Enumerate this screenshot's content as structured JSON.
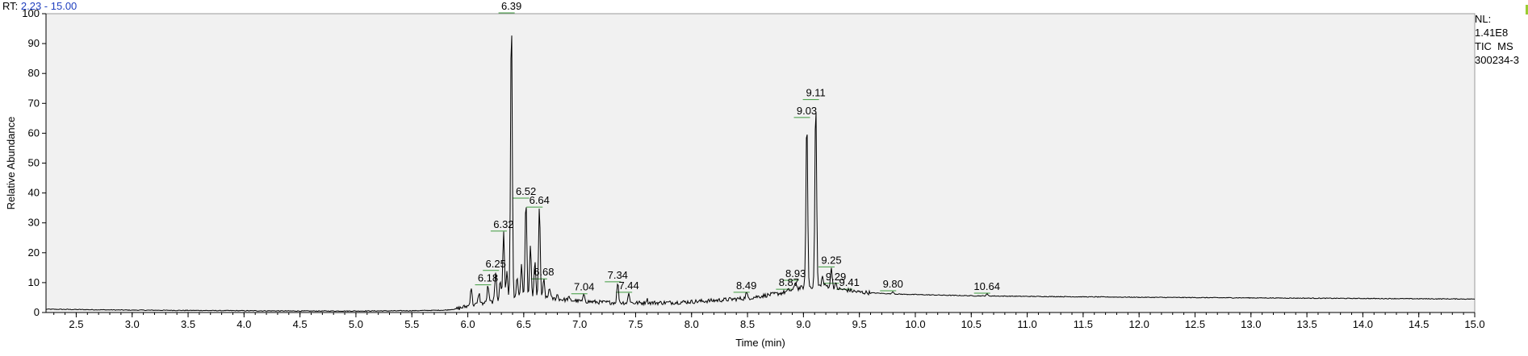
{
  "header": {
    "rt_prefix": "RT:",
    "rt_range": "2.23 - 15.00"
  },
  "side_info": {
    "nl_label": "NL:",
    "nl_value": "1.41E8",
    "scan_filter": "TIC  MS",
    "sample_id": "300234-3"
  },
  "colors": {
    "plot_background": "#f1f1f1",
    "trace": "#000000",
    "peak_marker": "#3c9a3c",
    "rt_range_text": "#1f3fbf"
  },
  "chart_data": {
    "type": "line",
    "title": "",
    "xlabel": "Time (min)",
    "ylabel": "Relative Abundance",
    "xlim": [
      2.23,
      15.0
    ],
    "ylim": [
      0,
      100
    ],
    "x_ticks": [
      2.5,
      3.0,
      3.5,
      4.0,
      4.5,
      5.0,
      5.5,
      6.0,
      6.5,
      7.0,
      7.5,
      8.0,
      8.5,
      9.0,
      9.5,
      10.0,
      10.5,
      11.0,
      11.5,
      12.0,
      12.5,
      13.0,
      13.5,
      14.0,
      14.5,
      15.0
    ],
    "x_tick_labels": [
      "2.5",
      "3.0",
      "3.5",
      "4.0",
      "4.5",
      "5.0",
      "5.5",
      "6.0",
      "6.5",
      "7.0",
      "7.5",
      "8.0",
      "8.5",
      "9.0",
      "9.5",
      "10.0",
      "10.5",
      "11.0",
      "11.5",
      "12.0",
      "12.5",
      "13.0",
      "13.5",
      "14.0",
      "14.5",
      "15.0"
    ],
    "y_ticks": [
      0,
      10,
      20,
      30,
      40,
      50,
      60,
      70,
      80,
      90,
      100
    ],
    "y_tick_labels": [
      "0",
      "10",
      "20",
      "30",
      "40",
      "50",
      "60",
      "70",
      "80",
      "90",
      "100"
    ],
    "baseline": [
      [
        2.23,
        1.1
      ],
      [
        2.5,
        1.0
      ],
      [
        3.0,
        0.8
      ],
      [
        3.5,
        0.7
      ],
      [
        4.0,
        0.6
      ],
      [
        4.5,
        0.5
      ],
      [
        5.0,
        0.5
      ],
      [
        5.5,
        0.6
      ],
      [
        5.8,
        0.8
      ],
      [
        5.9,
        1.2
      ],
      [
        6.0,
        2.2
      ],
      [
        6.2,
        3.5
      ],
      [
        6.4,
        4.5
      ],
      [
        6.6,
        5.0
      ],
      [
        6.8,
        4.5
      ],
      [
        7.0,
        3.8
      ],
      [
        7.2,
        3.4
      ],
      [
        7.5,
        3.2
      ],
      [
        7.8,
        3.3
      ],
      [
        8.0,
        3.6
      ],
      [
        8.2,
        4.0
      ],
      [
        8.5,
        4.8
      ],
      [
        8.8,
        6.5
      ],
      [
        9.0,
        8.5
      ],
      [
        9.2,
        9.0
      ],
      [
        9.3,
        8.0
      ],
      [
        9.5,
        6.8
      ],
      [
        9.8,
        6.2
      ],
      [
        10.0,
        6.0
      ],
      [
        10.5,
        5.6
      ],
      [
        11.0,
        5.4
      ],
      [
        12.0,
        5.1
      ],
      [
        13.0,
        4.9
      ],
      [
        14.0,
        4.7
      ],
      [
        15.0,
        4.5
      ]
    ],
    "peaks": [
      {
        "rt": 6.03,
        "height": 8.5,
        "label": ""
      },
      {
        "rt": 6.1,
        "height": 6.5,
        "label": ""
      },
      {
        "rt": 6.18,
        "height": 9.0,
        "label": "6.18"
      },
      {
        "rt": 6.25,
        "height": 13.8,
        "label": "6.25"
      },
      {
        "rt": 6.29,
        "height": 10.5,
        "label": ""
      },
      {
        "rt": 6.32,
        "height": 27.0,
        "label": "6.32"
      },
      {
        "rt": 6.35,
        "height": 14.0,
        "label": ""
      },
      {
        "rt": 6.39,
        "height": 100.0,
        "label": "6.39"
      },
      {
        "rt": 6.44,
        "height": 12.0,
        "label": ""
      },
      {
        "rt": 6.48,
        "height": 16.0,
        "label": ""
      },
      {
        "rt": 6.52,
        "height": 38.0,
        "label": "6.52"
      },
      {
        "rt": 6.56,
        "height": 22.0,
        "label": ""
      },
      {
        "rt": 6.6,
        "height": 17.0,
        "label": ""
      },
      {
        "rt": 6.64,
        "height": 35.0,
        "label": "6.64"
      },
      {
        "rt": 6.68,
        "height": 11.0,
        "label": "6.68"
      },
      {
        "rt": 6.73,
        "height": 8.5,
        "label": ""
      },
      {
        "rt": 6.8,
        "height": 6.0,
        "label": ""
      },
      {
        "rt": 6.9,
        "height": 5.0,
        "label": ""
      },
      {
        "rt": 7.04,
        "height": 6.0,
        "label": "7.04"
      },
      {
        "rt": 7.34,
        "height": 10.0,
        "label": "7.34"
      },
      {
        "rt": 7.44,
        "height": 6.5,
        "label": "7.44"
      },
      {
        "rt": 7.6,
        "height": 4.5,
        "label": ""
      },
      {
        "rt": 8.49,
        "height": 6.5,
        "label": "8.49"
      },
      {
        "rt": 8.87,
        "height": 7.5,
        "label": "8.87"
      },
      {
        "rt": 8.93,
        "height": 10.5,
        "label": "8.93"
      },
      {
        "rt": 9.03,
        "height": 65.0,
        "label": "9.03"
      },
      {
        "rt": 9.11,
        "height": 71.0,
        "label": "9.11"
      },
      {
        "rt": 9.17,
        "height": 12.0,
        "label": ""
      },
      {
        "rt": 9.25,
        "height": 15.0,
        "label": "9.25"
      },
      {
        "rt": 9.29,
        "height": 9.5,
        "label": "9.29"
      },
      {
        "rt": 9.41,
        "height": 7.5,
        "label": "9.41"
      },
      {
        "rt": 9.8,
        "height": 7.0,
        "label": "9.80"
      },
      {
        "rt": 10.64,
        "height": 6.2,
        "label": "10.64"
      }
    ]
  }
}
